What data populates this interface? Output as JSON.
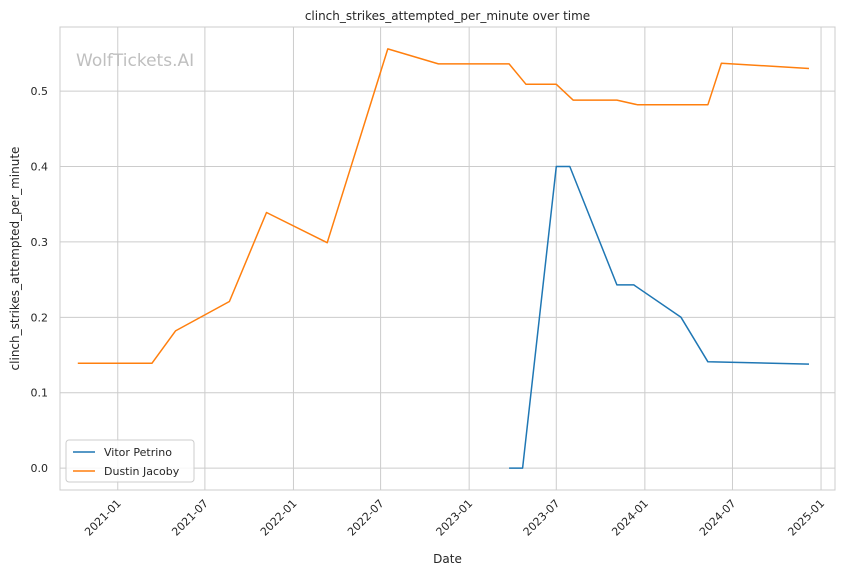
{
  "watermark": "WolfTickets.AI",
  "chart_data": {
    "type": "line",
    "title": "clinch_strikes_attempted_per_minute over time",
    "xlabel": "Date",
    "ylabel": "clinch_strikes_attempted_per_minute",
    "x_ticks": [
      "2021-01",
      "2021-07",
      "2022-01",
      "2022-07",
      "2023-01",
      "2023-07",
      "2024-01",
      "2024-07",
      "2025-01"
    ],
    "y_ticks": [
      "0.0",
      "0.1",
      "0.2",
      "0.3",
      "0.4",
      "0.5"
    ],
    "xlim": [
      "2020-09-03",
      "2025-01-30"
    ],
    "ylim": [
      -0.029,
      0.585
    ],
    "grid": true,
    "legend_position": "lower-left",
    "series": [
      {
        "name": "Vitor Petrino",
        "color": "#1f77b4",
        "points": [
          {
            "x": "2023-03-25",
            "y": 0.0
          },
          {
            "x": "2023-04-22",
            "y": 0.0
          },
          {
            "x": "2023-07-01",
            "y": 0.4
          },
          {
            "x": "2023-07-29",
            "y": 0.4
          },
          {
            "x": "2023-11-04",
            "y": 0.243
          },
          {
            "x": "2023-12-09",
            "y": 0.243
          },
          {
            "x": "2024-03-16",
            "y": 0.2
          },
          {
            "x": "2024-05-11",
            "y": 0.141
          },
          {
            "x": "2024-12-07",
            "y": 0.138
          }
        ]
      },
      {
        "name": "Dustin Jacoby",
        "color": "#ff7f0e",
        "points": [
          {
            "x": "2020-10-10",
            "y": 0.139
          },
          {
            "x": "2021-03-13",
            "y": 0.139
          },
          {
            "x": "2021-05-01",
            "y": 0.182
          },
          {
            "x": "2021-08-21",
            "y": 0.221
          },
          {
            "x": "2021-11-06",
            "y": 0.339
          },
          {
            "x": "2022-03-12",
            "y": 0.299
          },
          {
            "x": "2022-07-16",
            "y": 0.556
          },
          {
            "x": "2022-10-29",
            "y": 0.536
          },
          {
            "x": "2023-03-25",
            "y": 0.536
          },
          {
            "x": "2023-04-29",
            "y": 0.509
          },
          {
            "x": "2023-07-01",
            "y": 0.509
          },
          {
            "x": "2023-08-05",
            "y": 0.488
          },
          {
            "x": "2023-11-04",
            "y": 0.488
          },
          {
            "x": "2023-12-16",
            "y": 0.482
          },
          {
            "x": "2024-05-11",
            "y": 0.482
          },
          {
            "x": "2024-06-08",
            "y": 0.537
          },
          {
            "x": "2024-12-07",
            "y": 0.53
          }
        ]
      }
    ]
  }
}
